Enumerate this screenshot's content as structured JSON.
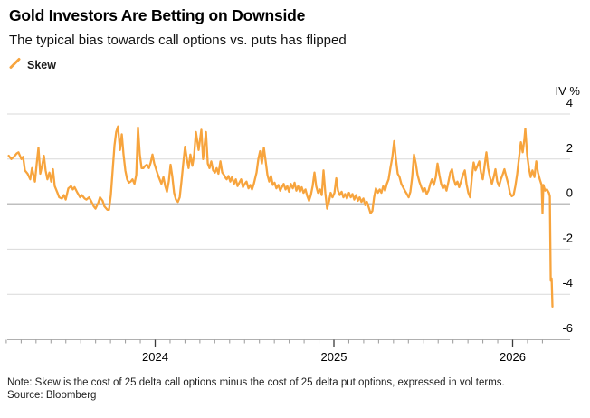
{
  "header": {
    "title": "Gold Investors Are Betting on Downside",
    "subtitle": "The typical bias towards call options vs. puts has flipped"
  },
  "legend": {
    "items": [
      {
        "label": "Skew",
        "color": "#F7A43D"
      }
    ]
  },
  "footer": {
    "note": "Note: Skew is the cost of 25 delta call options minus the cost of 25 delta put options, expressed in vol terms.",
    "source": "Source: Bloomberg"
  },
  "chart_data": {
    "type": "line",
    "unit_label": "IV %",
    "ylabel": "IV %",
    "xlabel": "",
    "ylim": [
      -6,
      4
    ],
    "xlim": [
      2023.155,
      2026.33
    ],
    "grid": true,
    "zero_line": true,
    "legend_position": "top-left",
    "y_ticks": [
      4,
      2,
      0,
      -2,
      -4,
      -6
    ],
    "x_ticks": [
      {
        "t": 2024,
        "label": "2024"
      },
      {
        "t": 2025,
        "label": "2025"
      },
      {
        "t": 2026,
        "label": "2026"
      }
    ],
    "minor_x_ticks": "monthly",
    "colors": {
      "gridline": "#D9D9D9",
      "zero_line": "#000000",
      "axis": "#B0B0B0"
    },
    "series": [
      {
        "name": "Skew",
        "color": "#F7A43D",
        "points": [
          [
            2023.18,
            2.15
          ],
          [
            2023.195,
            2.0
          ],
          [
            2023.21,
            2.1
          ],
          [
            2023.225,
            2.25
          ],
          [
            2023.235,
            2.3
          ],
          [
            2023.251,
            2.0
          ],
          [
            2023.261,
            2.1
          ],
          [
            2023.271,
            1.5
          ],
          [
            2023.286,
            1.35
          ],
          [
            2023.301,
            1.1
          ],
          [
            2023.311,
            1.6
          ],
          [
            2023.327,
            1.0
          ],
          [
            2023.337,
            1.8
          ],
          [
            2023.347,
            2.5
          ],
          [
            2023.357,
            1.35
          ],
          [
            2023.367,
            1.7
          ],
          [
            2023.377,
            2.15
          ],
          [
            2023.387,
            1.5
          ],
          [
            2023.397,
            1.1
          ],
          [
            2023.408,
            1.4
          ],
          [
            2023.418,
            1.0
          ],
          [
            2023.428,
            1.55
          ],
          [
            2023.438,
            0.8
          ],
          [
            2023.453,
            0.5
          ],
          [
            2023.463,
            0.3
          ],
          [
            2023.478,
            0.25
          ],
          [
            2023.489,
            0.4
          ],
          [
            2023.499,
            0.2
          ],
          [
            2023.514,
            0.7
          ],
          [
            2023.529,
            0.8
          ],
          [
            2023.539,
            0.65
          ],
          [
            2023.549,
            0.75
          ],
          [
            2023.565,
            0.5
          ],
          [
            2023.58,
            0.3
          ],
          [
            2023.59,
            0.4
          ],
          [
            2023.605,
            0.25
          ],
          [
            2023.615,
            0.2
          ],
          [
            2023.63,
            0.3
          ],
          [
            2023.641,
            0.15
          ],
          [
            2023.656,
            -0.1
          ],
          [
            2023.666,
            -0.2
          ],
          [
            2023.681,
            0.05
          ],
          [
            2023.691,
            0.3
          ],
          [
            2023.706,
            0.15
          ],
          [
            2023.716,
            -0.1
          ],
          [
            2023.732,
            -0.25
          ],
          [
            2023.742,
            -0.25
          ],
          [
            2023.752,
            0.4
          ],
          [
            2023.762,
            1.5
          ],
          [
            2023.772,
            2.6
          ],
          [
            2023.782,
            3.2
          ],
          [
            2023.792,
            3.45
          ],
          [
            2023.803,
            2.4
          ],
          [
            2023.813,
            3.1
          ],
          [
            2023.823,
            2.2
          ],
          [
            2023.833,
            1.5
          ],
          [
            2023.843,
            1.1
          ],
          [
            2023.853,
            0.95
          ],
          [
            2023.863,
            1.0
          ],
          [
            2023.873,
            1.1
          ],
          [
            2023.884,
            0.9
          ],
          [
            2023.894,
            1.3
          ],
          [
            2023.904,
            3.4
          ],
          [
            2023.914,
            2.2
          ],
          [
            2023.924,
            1.6
          ],
          [
            2023.934,
            1.6
          ],
          [
            2023.944,
            1.7
          ],
          [
            2023.954,
            1.75
          ],
          [
            2023.965,
            1.6
          ],
          [
            2023.975,
            1.85
          ],
          [
            2023.985,
            2.2
          ],
          [
            2023.995,
            1.8
          ],
          [
            2024.005,
            1.55
          ],
          [
            2024.015,
            1.3
          ],
          [
            2024.025,
            1.1
          ],
          [
            2024.035,
            0.9
          ],
          [
            2024.046,
            1.2
          ],
          [
            2024.056,
            0.8
          ],
          [
            2024.066,
            0.55
          ],
          [
            2024.076,
            1.0
          ],
          [
            2024.086,
            1.75
          ],
          [
            2024.096,
            1.2
          ],
          [
            2024.106,
            0.5
          ],
          [
            2024.116,
            0.2
          ],
          [
            2024.127,
            0.1
          ],
          [
            2024.137,
            0.3
          ],
          [
            2024.147,
            1.0
          ],
          [
            2024.157,
            1.8
          ],
          [
            2024.167,
            2.55
          ],
          [
            2024.177,
            2.0
          ],
          [
            2024.187,
            1.6
          ],
          [
            2024.197,
            2.2
          ],
          [
            2024.208,
            1.7
          ],
          [
            2024.218,
            2.2
          ],
          [
            2024.228,
            3.2
          ],
          [
            2024.243,
            2.4
          ],
          [
            2024.258,
            3.3
          ],
          [
            2024.268,
            2.0
          ],
          [
            2024.284,
            3.2
          ],
          [
            2024.294,
            1.8
          ],
          [
            2024.304,
            1.6
          ],
          [
            2024.314,
            1.9
          ],
          [
            2024.324,
            1.5
          ],
          [
            2024.334,
            1.4
          ],
          [
            2024.344,
            1.6
          ],
          [
            2024.354,
            1.35
          ],
          [
            2024.365,
            1.9
          ],
          [
            2024.375,
            1.4
          ],
          [
            2024.385,
            1.3
          ],
          [
            2024.395,
            1.15
          ],
          [
            2024.4,
            1.1
          ],
          [
            2024.41,
            1.25
          ],
          [
            2024.42,
            1.0
          ],
          [
            2024.43,
            1.2
          ],
          [
            2024.441,
            0.9
          ],
          [
            2024.451,
            1.1
          ],
          [
            2024.461,
            0.8
          ],
          [
            2024.471,
            0.95
          ],
          [
            2024.481,
            1.1
          ],
          [
            2024.491,
            0.75
          ],
          [
            2024.501,
            0.9
          ],
          [
            2024.511,
            1.0
          ],
          [
            2024.522,
            0.7
          ],
          [
            2024.532,
            0.85
          ],
          [
            2024.542,
            0.65
          ],
          [
            2024.552,
            0.9
          ],
          [
            2024.567,
            1.4
          ],
          [
            2024.577,
            2.0
          ],
          [
            2024.587,
            2.35
          ],
          [
            2024.597,
            1.8
          ],
          [
            2024.608,
            2.5
          ],
          [
            2024.618,
            1.9
          ],
          [
            2024.628,
            1.3
          ],
          [
            2024.638,
            1.0
          ],
          [
            2024.648,
            1.25
          ],
          [
            2024.658,
            0.85
          ],
          [
            2024.668,
            0.95
          ],
          [
            2024.678,
            0.7
          ],
          [
            2024.689,
            0.85
          ],
          [
            2024.699,
            0.6
          ],
          [
            2024.709,
            0.75
          ],
          [
            2024.719,
            0.9
          ],
          [
            2024.729,
            0.65
          ],
          [
            2024.739,
            0.8
          ],
          [
            2024.749,
            0.55
          ],
          [
            2024.759,
            0.9
          ],
          [
            2024.77,
            0.7
          ],
          [
            2024.78,
            0.95
          ],
          [
            2024.79,
            0.6
          ],
          [
            2024.8,
            0.8
          ],
          [
            2024.81,
            0.55
          ],
          [
            2024.82,
            0.75
          ],
          [
            2024.83,
            0.5
          ],
          [
            2024.841,
            0.65
          ],
          [
            2024.851,
            0.35
          ],
          [
            2024.861,
            0.15
          ],
          [
            2024.871,
            0.4
          ],
          [
            2024.881,
            0.8
          ],
          [
            2024.891,
            1.4
          ],
          [
            2024.901,
            0.8
          ],
          [
            2024.911,
            0.5
          ],
          [
            2024.922,
            0.65
          ],
          [
            2024.932,
            0.4
          ],
          [
            2024.942,
            1.5
          ],
          [
            2024.952,
            0.5
          ],
          [
            2024.962,
            -0.2
          ],
          [
            2024.972,
            0.1
          ],
          [
            2024.982,
            0.5
          ],
          [
            2024.992,
            0.3
          ],
          [
            2025.003,
            0.5
          ],
          [
            2025.013,
            1.15
          ],
          [
            2025.023,
            0.6
          ],
          [
            2025.033,
            0.4
          ],
          [
            2025.043,
            0.55
          ],
          [
            2025.053,
            0.3
          ],
          [
            2025.063,
            0.45
          ],
          [
            2025.073,
            0.25
          ],
          [
            2025.084,
            0.5
          ],
          [
            2025.094,
            0.3
          ],
          [
            2025.104,
            0.45
          ],
          [
            2025.114,
            0.2
          ],
          [
            2025.124,
            0.4
          ],
          [
            2025.134,
            0.15
          ],
          [
            2025.144,
            0.3
          ],
          [
            2025.154,
            0.1
          ],
          [
            2025.165,
            0.25
          ],
          [
            2025.175,
            -0.05
          ],
          [
            2025.185,
            0.1
          ],
          [
            2025.195,
            -0.15
          ],
          [
            2025.205,
            -0.4
          ],
          [
            2025.215,
            -0.3
          ],
          [
            2025.225,
            0.3
          ],
          [
            2025.235,
            0.7
          ],
          [
            2025.246,
            0.5
          ],
          [
            2025.256,
            0.65
          ],
          [
            2025.266,
            0.5
          ],
          [
            2025.276,
            0.8
          ],
          [
            2025.286,
            0.6
          ],
          [
            2025.296,
            0.9
          ],
          [
            2025.306,
            1.1
          ],
          [
            2025.316,
            1.6
          ],
          [
            2025.327,
            2.1
          ],
          [
            2025.337,
            2.8
          ],
          [
            2025.347,
            2.0
          ],
          [
            2025.357,
            1.35
          ],
          [
            2025.367,
            1.2
          ],
          [
            2025.377,
            0.9
          ],
          [
            2025.387,
            0.75
          ],
          [
            2025.397,
            0.6
          ],
          [
            2025.408,
            0.45
          ],
          [
            2025.418,
            0.3
          ],
          [
            2025.428,
            0.55
          ],
          [
            2025.438,
            1.2
          ],
          [
            2025.448,
            2.2
          ],
          [
            2025.458,
            1.8
          ],
          [
            2025.468,
            1.3
          ],
          [
            2025.478,
            1.0
          ],
          [
            2025.489,
            0.75
          ],
          [
            2025.499,
            0.55
          ],
          [
            2025.509,
            0.7
          ],
          [
            2025.519,
            0.45
          ],
          [
            2025.529,
            0.6
          ],
          [
            2025.539,
            0.9
          ],
          [
            2025.549,
            1.1
          ],
          [
            2025.559,
            0.85
          ],
          [
            2025.57,
            1.2
          ],
          [
            2025.58,
            1.8
          ],
          [
            2025.59,
            1.3
          ],
          [
            2025.6,
            0.9
          ],
          [
            2025.61,
            0.7
          ],
          [
            2025.62,
            0.85
          ],
          [
            2025.63,
            0.6
          ],
          [
            2025.641,
            1.0
          ],
          [
            2025.651,
            1.4
          ],
          [
            2025.661,
            1.55
          ],
          [
            2025.671,
            1.1
          ],
          [
            2025.681,
            0.85
          ],
          [
            2025.691,
            1.0
          ],
          [
            2025.701,
            0.75
          ],
          [
            2025.711,
            1.0
          ],
          [
            2025.722,
            1.3
          ],
          [
            2025.732,
            1.5
          ],
          [
            2025.742,
            0.9
          ],
          [
            2025.752,
            0.5
          ],
          [
            2025.762,
            0.3
          ],
          [
            2025.772,
            1.2
          ],
          [
            2025.782,
            1.85
          ],
          [
            2025.792,
            1.5
          ],
          [
            2025.803,
            1.7
          ],
          [
            2025.813,
            1.9
          ],
          [
            2025.823,
            1.4
          ],
          [
            2025.833,
            1.1
          ],
          [
            2025.843,
            1.7
          ],
          [
            2025.853,
            2.3
          ],
          [
            2025.863,
            1.6
          ],
          [
            2025.873,
            1.2
          ],
          [
            2025.884,
            0.9
          ],
          [
            2025.894,
            1.2
          ],
          [
            2025.904,
            1.55
          ],
          [
            2025.914,
            1.0
          ],
          [
            2025.924,
            0.8
          ],
          [
            2025.934,
            1.1
          ],
          [
            2025.944,
            1.3
          ],
          [
            2025.954,
            1.55
          ],
          [
            2025.965,
            1.2
          ],
          [
            2025.975,
            0.9
          ],
          [
            2025.985,
            0.5
          ],
          [
            2025.995,
            0.35
          ],
          [
            2026.005,
            0.4
          ],
          [
            2026.015,
            0.8
          ],
          [
            2026.025,
            1.3
          ],
          [
            2026.035,
            2.0
          ],
          [
            2026.046,
            2.75
          ],
          [
            2026.056,
            2.3
          ],
          [
            2026.066,
            2.9
          ],
          [
            2026.071,
            3.35
          ],
          [
            2026.081,
            2.2
          ],
          [
            2026.091,
            1.6
          ],
          [
            2026.101,
            1.2
          ],
          [
            2026.111,
            1.5
          ],
          [
            2026.122,
            1.2
          ],
          [
            2026.132,
            1.9
          ],
          [
            2026.142,
            1.4
          ],
          [
            2026.152,
            1.1
          ],
          [
            2026.162,
            0.85
          ],
          [
            2026.167,
            -0.4
          ],
          [
            2026.172,
            0.85
          ],
          [
            2026.182,
            0.6
          ],
          [
            2026.192,
            0.65
          ],
          [
            2026.203,
            0.5
          ],
          [
            2026.208,
            0.35
          ],
          [
            2026.213,
            -3.4
          ],
          [
            2026.218,
            -3.3
          ],
          [
            2026.223,
            -4.55
          ]
        ]
      }
    ]
  }
}
